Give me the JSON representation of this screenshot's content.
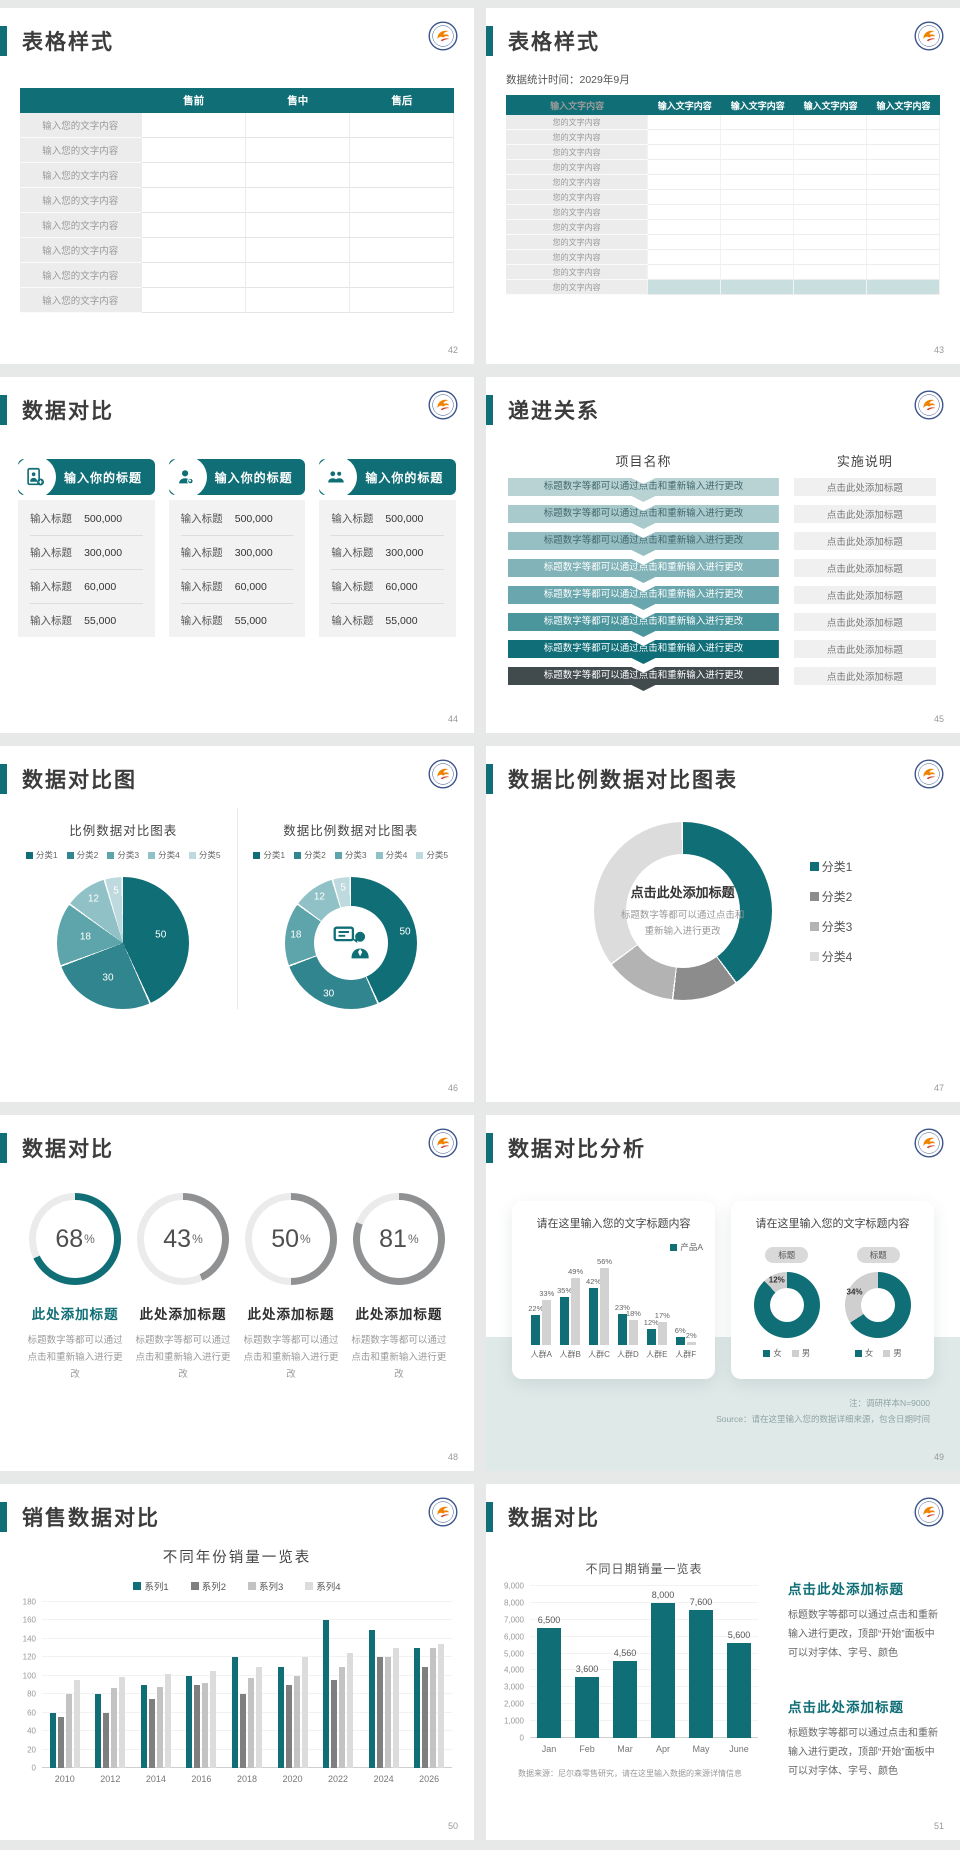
{
  "theme": {
    "teal": "#0f6e76",
    "teal_light": "#c9dfdf",
    "gray_bar": "#8f9193",
    "track": "#ebebeb",
    "band": "#dfe9e8"
  },
  "slides": {
    "s42": {
      "title": "表格样式",
      "page": "42",
      "table": {
        "headers": [
          "",
          "售前",
          "售中",
          "售后"
        ],
        "row_label": "输入您的文字内容",
        "row_count": 8
      }
    },
    "s43": {
      "title": "表格样式",
      "subtitle": "数据统计时间：2029年9月",
      "page": "43",
      "table": {
        "headers": [
          "输入文字内容",
          "输入文字内容",
          "输入文字内容",
          "输入文字内容",
          "输入文字内容"
        ],
        "row_label": "您的文字内容",
        "row_count": 12,
        "highlight_last": true
      }
    },
    "s44": {
      "title": "数据对比",
      "page": "44",
      "card_title": "输入你的标题",
      "icons": [
        "person-add-icon",
        "person-search-icon",
        "people-group-icon"
      ],
      "rows": [
        {
          "label": "输入标题",
          "value": "500,000"
        },
        {
          "label": "输入标题",
          "value": "300,000"
        },
        {
          "label": "输入标题",
          "value": "60,000"
        },
        {
          "label": "输入标题",
          "value": "55,000"
        }
      ]
    },
    "s45": {
      "title": "递进关系",
      "page": "45",
      "col1": "项目名称",
      "col2": "实施说明",
      "bar_text": "标题数字等都可以通过点击和重新输入进行更改",
      "cell_text": "点击此处添加标题",
      "colors": [
        "#b9d3d5",
        "#a9cacd",
        "#96bfc3",
        "#81b3b9",
        "#69a6ad",
        "#4b959d",
        "#0f6e78",
        "#414b4e"
      ],
      "dark_text_rows": 3
    },
    "s46": {
      "title": "数据对比图",
      "page": "46",
      "chart_data": [
        {
          "type": "pie",
          "title": "比例数据对比图表",
          "legend": [
            "分类1",
            "分类2",
            "分类3",
            "分类4",
            "分类5"
          ],
          "values": [
            50,
            30,
            18,
            12,
            5
          ],
          "colors": [
            "#0f6e76",
            "#31858e",
            "#5ea4ab",
            "#8fc1c6",
            "#bedade"
          ]
        },
        {
          "type": "pie",
          "subtype": "donut",
          "title": "数据比例数据对比图表",
          "legend": [
            "分类1",
            "分类2",
            "分类3",
            "分类4",
            "分类5"
          ],
          "values": [
            50,
            30,
            18,
            12,
            5
          ],
          "colors": [
            "#0f6e76",
            "#31858e",
            "#5ea4ab",
            "#8fc1c6",
            "#bedade"
          ]
        }
      ]
    },
    "s47": {
      "title": "数据比例数据对比图表",
      "page": "47",
      "center_title": "点击此处添加标题",
      "center_sub1": "标题数字等都可以通过点击和",
      "center_sub2": "重新输入进行更改",
      "chart_data": {
        "type": "pie",
        "subtype": "donut",
        "legend": [
          "分类1",
          "分类2",
          "分类3",
          "分类4"
        ],
        "values": [
          40,
          12,
          13,
          35
        ],
        "colors": [
          "#0f6e76",
          "#8c8c8c",
          "#b3b3b3",
          "#dcdcdc"
        ]
      }
    },
    "s48": {
      "title": "数据对比",
      "page": "48",
      "items": [
        {
          "pct": 68,
          "accent": true,
          "title": "此处添加标题",
          "desc": "标题数字等都可以通过点击和重新输入进行更改"
        },
        {
          "pct": 43,
          "accent": false,
          "title": "此处添加标题",
          "desc": "标题数字等都可以通过点击和重新输入进行更改"
        },
        {
          "pct": 50,
          "accent": false,
          "title": "此处添加标题",
          "desc": "标题数字等都可以通过点击和重新输入进行更改"
        },
        {
          "pct": 81,
          "accent": false,
          "title": "此处添加标题",
          "desc": "标题数字等都可以通过点击和重新输入进行更改"
        }
      ]
    },
    "s49": {
      "title": "数据对比分析",
      "page": "49",
      "note1": "注：调研样本N=9000",
      "note2": "Source：请在这里输入您的数据详细来源，包含日期时间",
      "left": {
        "card_title": "请在这里输入您的文字标题内容",
        "chart_data": {
          "type": "bar",
          "categories": [
            "人群A",
            "人群B",
            "人群C",
            "人群D",
            "人群E",
            "人群F"
          ],
          "max": 60,
          "series": [
            {
              "name": "产品A",
              "color": "#0f6e76",
              "values": [
                22,
                35,
                42,
                23,
                12,
                6
              ]
            },
            {
              "name": "产品B",
              "color": "#d2d2d2",
              "values": [
                33,
                49,
                56,
                18,
                17,
                2
              ]
            }
          ]
        }
      },
      "right": {
        "card_title": "请在这里输入您的文字标题内容",
        "chip": "标题",
        "legend": [
          "女",
          "男"
        ],
        "legend_colors": [
          "#0f6e76",
          "#cfcfcf"
        ],
        "chart_data": [
          {
            "type": "pie",
            "subtype": "donut",
            "values_female_male": [
              88,
              12
            ]
          },
          {
            "type": "pie",
            "subtype": "donut",
            "values_female_male": [
              66,
              34
            ]
          }
        ]
      }
    },
    "s50": {
      "title": "销售数据对比",
      "page": "50",
      "chart_data": {
        "type": "bar",
        "title": "不同年份销量一览表",
        "legend": [
          "系列1",
          "系列2",
          "系列3",
          "系列4"
        ],
        "colors": [
          "#0f6e76",
          "#7f7f7f",
          "#c3c3c3",
          "#dcdcdc"
        ],
        "categories": [
          "2010",
          "2012",
          "2014",
          "2016",
          "2018",
          "2020",
          "2022",
          "2024",
          "2026"
        ],
        "series": [
          {
            "name": "系列1",
            "color": "#0f6e76",
            "values": [
              60,
              80,
              90,
              100,
              120,
              110,
              160,
              150,
              130
            ]
          },
          {
            "name": "系列2",
            "color": "#7f7f7f",
            "values": [
              55,
              60,
              75,
              90,
              80,
              90,
              95,
              120,
              110
            ]
          },
          {
            "name": "系列3",
            "color": "#c3c3c3",
            "values": [
              80,
              87,
              88,
              92,
              98,
              100,
              110,
              120,
              130
            ]
          },
          {
            "name": "系列4",
            "color": "#dcdcdc",
            "values": [
              95,
              99,
              102,
              105,
              110,
              120,
              125,
              130,
              135
            ]
          }
        ],
        "ylim": [
          0,
          180
        ],
        "yticks": [
          "0",
          "20",
          "40",
          "60",
          "80",
          "100",
          "120",
          "140",
          "160",
          "180"
        ]
      }
    },
    "s51": {
      "title": "数据对比",
      "page": "51",
      "source": "数据来源：尼尔森零售研究，请在这里输入数据的来源详情信息",
      "blocks": [
        {
          "title": "点击此处添加标题",
          "body": "标题数字等都可以通过点击和重新输入进行更改，顶部“开始”面板中可以对字体、字号、颜色"
        },
        {
          "title": "点击此处添加标题",
          "body": "标题数字等都可以通过点击和重新输入进行更改，顶部“开始”面板中可以对字体、字号、颜色"
        }
      ],
      "chart_data": {
        "type": "bar",
        "title": "不同日期销量一览表",
        "color": "#0f6e76",
        "categories": [
          "Jan",
          "Feb",
          "Mar",
          "Apr",
          "May",
          "June"
        ],
        "values": [
          6500,
          3600,
          4560,
          8000,
          7600,
          5600
        ],
        "labels": [
          "6,500",
          "3,600",
          "4,560",
          "8,000",
          "7,600",
          "5,600"
        ],
        "ylim": [
          0,
          9000
        ],
        "yticks": [
          "0",
          "1,000",
          "2,000",
          "3,000",
          "4,000",
          "5,000",
          "6,000",
          "7,000",
          "8,000",
          "9,000"
        ]
      }
    }
  }
}
